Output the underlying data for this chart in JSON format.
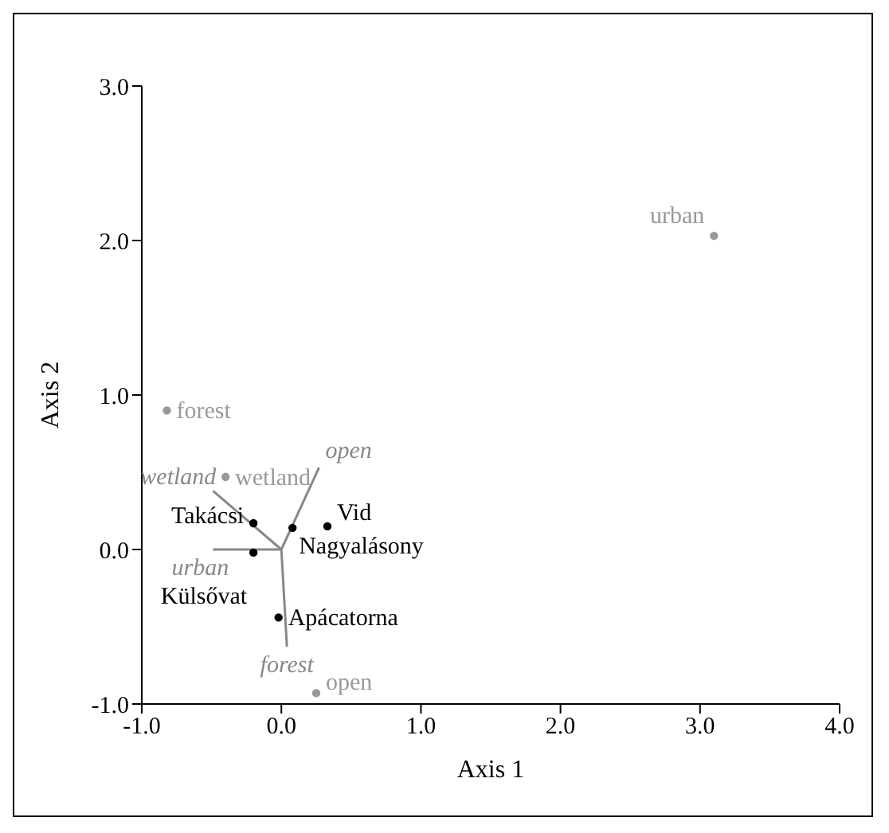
{
  "chart_data": {
    "type": "scatter",
    "xlabel": "Axis 1",
    "ylabel": "Axis 2",
    "xlim": [
      -1,
      4
    ],
    "ylim": [
      -1,
      3
    ],
    "xticks": [
      {
        "value": -1,
        "label": "-1.0"
      },
      {
        "value": 0,
        "label": "0.0"
      },
      {
        "value": 1,
        "label": "1.0"
      },
      {
        "value": 2,
        "label": "2.0"
      },
      {
        "value": 3,
        "label": "3.0"
      },
      {
        "value": 4,
        "label": "4.0"
      }
    ],
    "yticks": [
      {
        "value": -1,
        "label": "-1.0"
      },
      {
        "value": 0,
        "label": "0.0"
      },
      {
        "value": 1,
        "label": "1.0"
      },
      {
        "value": 2,
        "label": "2.0"
      },
      {
        "value": 3,
        "label": "3.0"
      }
    ],
    "grid": false,
    "legend": false,
    "marker": "circle",
    "series": [
      {
        "name": "open",
        "type": "line",
        "marker": "none",
        "color": "#888888",
        "x": [
          0,
          0.27
        ],
        "values": [
          0,
          0.53
        ]
      },
      {
        "name": "wetland",
        "type": "line",
        "marker": "none",
        "color": "#888888",
        "x": [
          0,
          -0.49
        ],
        "values": [
          0,
          0.38
        ]
      },
      {
        "name": "urban",
        "type": "line",
        "marker": "none",
        "color": "#888888",
        "x": [
          0,
          -0.49
        ],
        "values": [
          0,
          0.0
        ]
      },
      {
        "name": "forest",
        "type": "line",
        "marker": "none",
        "color": "#888888",
        "x": [
          0,
          0.04
        ],
        "values": [
          0,
          -0.63
        ]
      },
      {
        "name": "forest",
        "color": "#999999",
        "x": [
          -0.82
        ],
        "values": [
          0.9
        ]
      },
      {
        "name": "wetland",
        "color": "#999999",
        "x": [
          -0.4
        ],
        "values": [
          0.47
        ]
      },
      {
        "name": "open",
        "color": "#999999",
        "x": [
          0.25
        ],
        "values": [
          -0.93
        ]
      },
      {
        "name": "urban",
        "color": "#999999",
        "x": [
          3.1
        ],
        "values": [
          2.03
        ]
      },
      {
        "name": "Takácsi",
        "color": "#000000",
        "x": [
          -0.2
        ],
        "values": [
          0.17
        ]
      },
      {
        "name": "Külsővat",
        "color": "#000000",
        "x": [
          -0.2
        ],
        "values": [
          -0.02
        ]
      },
      {
        "name": "Nagyalásony",
        "color": "#000000",
        "x": [
          0.08
        ],
        "values": [
          0.14
        ]
      },
      {
        "name": "Vid",
        "color": "#000000",
        "x": [
          0.33
        ],
        "values": [
          0.15
        ]
      },
      {
        "name": "Apácatorna",
        "color": "#000000",
        "x": [
          -0.02
        ],
        "values": [
          -0.44
        ]
      }
    ]
  }
}
